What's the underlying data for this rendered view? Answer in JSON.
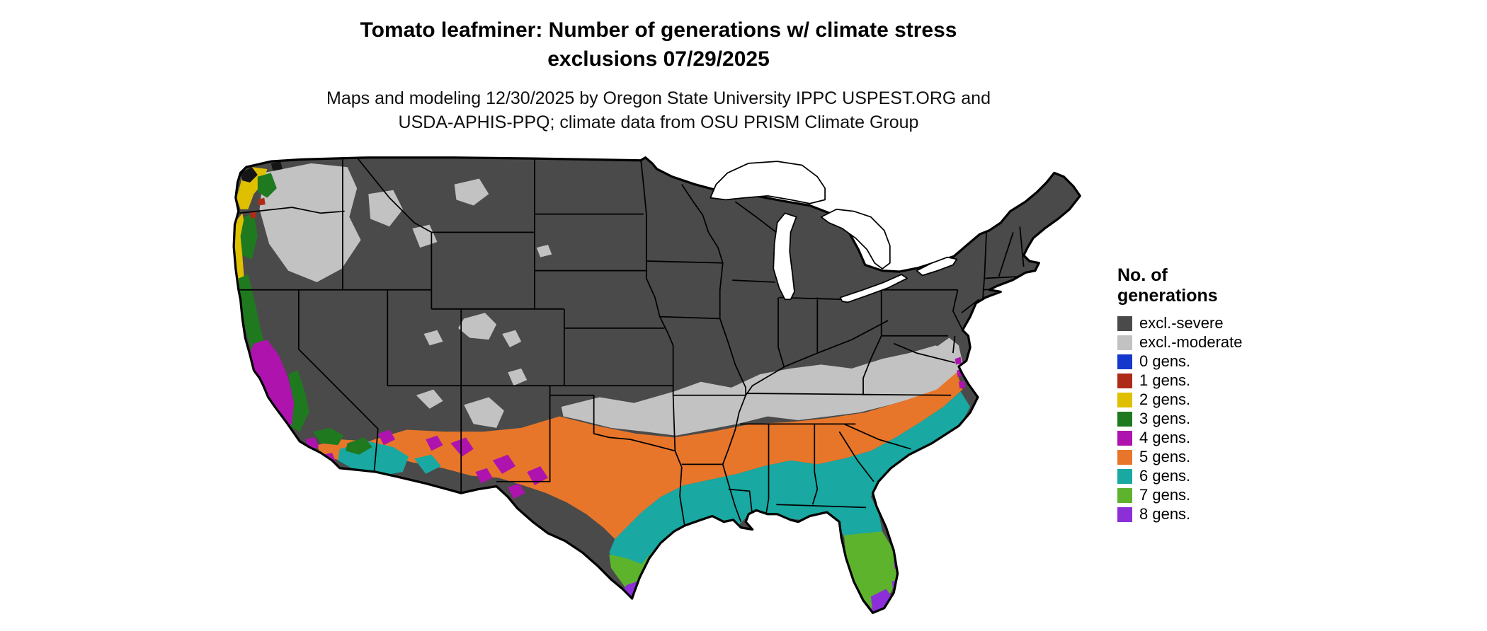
{
  "title": {
    "line1": "Tomato leafminer: Number of generations w/ climate stress",
    "line2": "exclusions 07/29/2025"
  },
  "subtitle": {
    "line1": "Maps and modeling 12/30/2025 by Oregon State University IPPC USPEST.ORG and",
    "line2": "USDA-APHIS-PPQ; climate data from OSU PRISM Climate Group"
  },
  "colors": {
    "severe": "#4a4a4a",
    "moderate": "#c2c2c2",
    "gens0": "#1437cc",
    "gens1": "#ad2b17",
    "gens2": "#dfc000",
    "gens3": "#1f7a1f",
    "gens4": "#ae13ae",
    "gens5": "#e8762a",
    "gens6": "#19a8a2",
    "gens7": "#5eb32d",
    "gens8": "#8c2fd9",
    "nodata": "#151515",
    "water": "#ffffff",
    "border": "#000000"
  },
  "legend": {
    "title_line1": "No. of",
    "title_line2": "generations",
    "items": [
      {
        "label": "excl.-severe",
        "color_key": "severe"
      },
      {
        "label": "excl.-moderate",
        "color_key": "moderate"
      },
      {
        "label": "0 gens.",
        "color_key": "gens0"
      },
      {
        "label": "1 gens.",
        "color_key": "gens1"
      },
      {
        "label": "2 gens.",
        "color_key": "gens2"
      },
      {
        "label": "3 gens.",
        "color_key": "gens3"
      },
      {
        "label": "4 gens.",
        "color_key": "gens4"
      },
      {
        "label": "5 gens.",
        "color_key": "gens5"
      },
      {
        "label": "6 gens.",
        "color_key": "gens6"
      },
      {
        "label": "7 gens.",
        "color_key": "gens7"
      },
      {
        "label": "8 gens.",
        "color_key": "gens8"
      }
    ]
  },
  "map": {
    "area": "Contiguous United States with state boundaries",
    "type": "choropleth",
    "regions": [
      {
        "class": "excl.-severe",
        "areas": "most of northern and interior US: Rockies, Great Plains, Midwest, Northeast"
      },
      {
        "class": "excl.-moderate",
        "areas": "band from southern plains through Oklahoma, Arkansas, Tennessee, Kentucky to the mid-Atlantic; patches in eastern Washington/Oregon, Idaho, Utah, Colorado highlands"
      },
      {
        "class": "2 gens.",
        "areas": "Pacific coast of Washington and Oregon"
      },
      {
        "class": "3 gens.",
        "areas": "coastal southern Oregon and northern/central California coast ranges"
      },
      {
        "class": "4 gens.",
        "areas": "California Central Valley; scattered patches in southern Arizona and New Mexico; coastal mid-Atlantic specks"
      },
      {
        "class": "5 gens.",
        "areas": "southern tier from southern Arizona/New Mexico across central Texas and the Gulf states to the Carolinas"
      },
      {
        "class": "6 gens.",
        "areas": "Gulf Coast: south Texas, Louisiana, southern Mississippi/Alabama, north Florida, coastal Georgia/South Carolina; southern Arizona desert"
      },
      {
        "class": "7 gens.",
        "areas": "far south Texas and central/southern Florida"
      },
      {
        "class": "8 gens.",
        "areas": "southernmost tip of Texas and south Florida including the Keys"
      }
    ]
  }
}
